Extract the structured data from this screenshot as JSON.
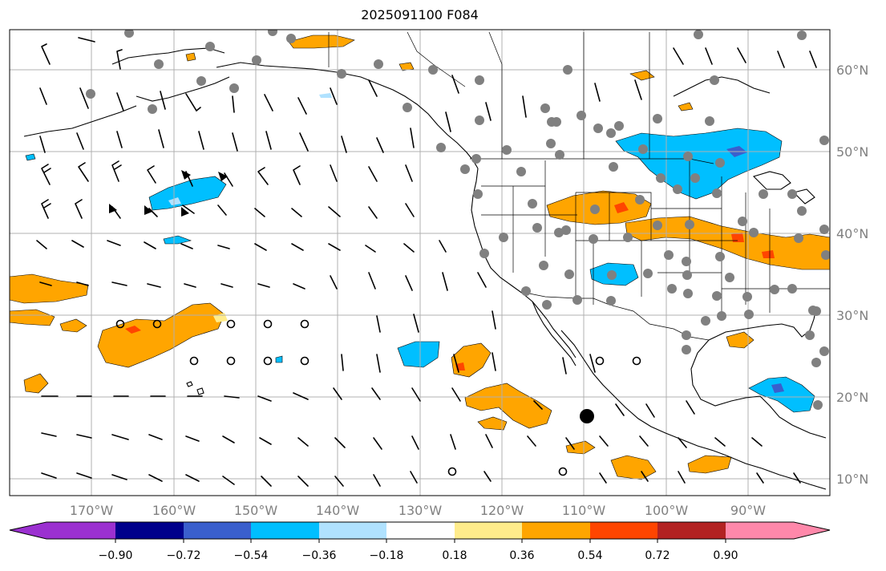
{
  "title": "2025091100 F084",
  "map": {
    "lat_labels": [
      "60°N",
      "50°N",
      "40°N",
      "30°N",
      "20°N",
      "10°N"
    ],
    "lon_labels": [
      "170°W",
      "160°W",
      "150°W",
      "140°W",
      "130°W",
      "120°W",
      "110°W",
      "100°W",
      "90°W"
    ],
    "colors": {
      "grid": "#b0b0b0",
      "coast": "#000000",
      "station": "#808080",
      "center_marker": "#000000"
    }
  },
  "colorbar": {
    "tick_labels": [
      "−0.90",
      "−0.72",
      "−0.54",
      "−0.36",
      "−0.18",
      "0.18",
      "0.36",
      "0.54",
      "0.72",
      "0.90"
    ],
    "colors": [
      "#9b30d0",
      "#00008b",
      "#3a5fcd",
      "#00bfff",
      "#b0e2ff",
      "#ffffff",
      "#ffec8b",
      "#ffa500",
      "#ff4500",
      "#b22222",
      "#ff88aa"
    ]
  }
}
